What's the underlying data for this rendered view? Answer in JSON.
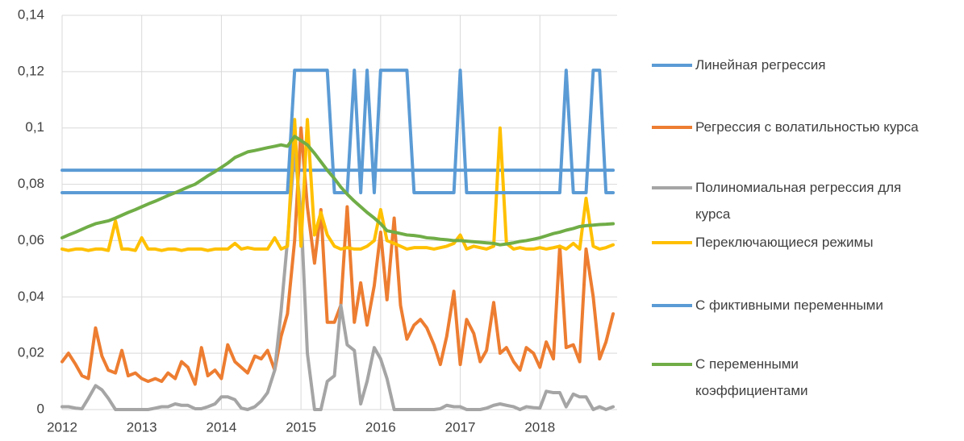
{
  "chart_data": {
    "type": "line",
    "x": [
      2012,
      2012.08,
      2012.17,
      2012.25,
      2012.33,
      2012.42,
      2012.5,
      2012.58,
      2012.67,
      2012.75,
      2012.83,
      2012.92,
      2013,
      2013.08,
      2013.17,
      2013.25,
      2013.33,
      2013.42,
      2013.5,
      2013.58,
      2013.67,
      2013.75,
      2013.83,
      2013.92,
      2014,
      2014.08,
      2014.17,
      2014.25,
      2014.33,
      2014.42,
      2014.5,
      2014.58,
      2014.67,
      2014.75,
      2014.83,
      2014.92,
      2015,
      2015.08,
      2015.17,
      2015.25,
      2015.33,
      2015.42,
      2015.5,
      2015.58,
      2015.67,
      2015.75,
      2015.83,
      2015.92,
      2016,
      2016.08,
      2016.17,
      2016.25,
      2016.33,
      2016.42,
      2016.5,
      2016.58,
      2016.67,
      2016.75,
      2016.83,
      2016.92,
      2017,
      2017.08,
      2017.17,
      2017.25,
      2017.33,
      2017.42,
      2017.5,
      2017.58,
      2017.67,
      2017.75,
      2017.83,
      2017.92,
      2018,
      2018.08,
      2018.17,
      2018.25,
      2018.33,
      2018.42,
      2018.5,
      2018.58,
      2018.67,
      2018.75,
      2018.83,
      2018.92
    ],
    "xlim": [
      2012,
      2018.97
    ],
    "xticks": [
      2012,
      2013,
      2014,
      2015,
      2016,
      2017,
      2018
    ],
    "ylim": [
      0,
      0.14
    ],
    "yticks": [
      0,
      {
        "value": 0.02,
        "label": "0,02"
      },
      {
        "value": 0.04,
        "label": "0,04"
      },
      {
        "value": 0.06,
        "label": "0,06"
      },
      {
        "value": 0.08,
        "label": "0,08"
      },
      {
        "value": 0.1,
        "label": "0,1"
      },
      {
        "value": 0.12,
        "label": "0,12"
      },
      {
        "value": 0.14,
        "label": "0,14"
      }
    ],
    "grid": true,
    "legend": "right",
    "series": [
      {
        "name": "Линейная регрессия",
        "color": "#5b9bd5",
        "values": [
          0.085,
          0.085,
          0.085,
          0.085,
          0.085,
          0.085,
          0.085,
          0.085,
          0.085,
          0.085,
          0.085,
          0.085,
          0.085,
          0.085,
          0.085,
          0.085,
          0.085,
          0.085,
          0.085,
          0.085,
          0.085,
          0.085,
          0.085,
          0.085,
          0.085,
          0.085,
          0.085,
          0.085,
          0.085,
          0.085,
          0.085,
          0.085,
          0.085,
          0.085,
          0.085,
          0.085,
          0.085,
          0.085,
          0.085,
          0.085,
          0.085,
          0.085,
          0.085,
          0.085,
          0.085,
          0.085,
          0.085,
          0.085,
          0.085,
          0.085,
          0.085,
          0.085,
          0.085,
          0.085,
          0.085,
          0.085,
          0.085,
          0.085,
          0.085,
          0.085,
          0.085,
          0.085,
          0.085,
          0.085,
          0.085,
          0.085,
          0.085,
          0.085,
          0.085,
          0.085,
          0.085,
          0.085,
          0.085,
          0.085,
          0.085,
          0.085,
          0.085,
          0.085,
          0.085,
          0.085,
          0.085,
          0.085,
          0.085,
          0.085
        ]
      },
      {
        "name": "Регрессия с волатильностью курса",
        "color": "#ed7d31",
        "values": [
          0.017,
          0.02,
          0.016,
          0.012,
          0.011,
          0.029,
          0.019,
          0.014,
          0.013,
          0.021,
          0.012,
          0.013,
          0.011,
          0.01,
          0.011,
          0.01,
          0.013,
          0.011,
          0.017,
          0.015,
          0.009,
          0.022,
          0.012,
          0.014,
          0.011,
          0.023,
          0.017,
          0.015,
          0.013,
          0.019,
          0.018,
          0.021,
          0.014,
          0.026,
          0.034,
          0.06,
          0.1,
          0.072,
          0.052,
          0.071,
          0.031,
          0.031,
          0.037,
          0.072,
          0.031,
          0.045,
          0.03,
          0.044,
          0.063,
          0.039,
          0.068,
          0.037,
          0.025,
          0.03,
          0.032,
          0.029,
          0.023,
          0.016,
          0.026,
          0.042,
          0.016,
          0.032,
          0.027,
          0.017,
          0.021,
          0.038,
          0.02,
          0.022,
          0.017,
          0.014,
          0.022,
          0.02,
          0.015,
          0.024,
          0.018,
          0.058,
          0.022,
          0.023,
          0.017,
          0.057,
          0.04,
          0.018,
          0.024,
          0.034
        ]
      },
      {
        "name": "Полиномиальная регрессия для курса",
        "color": "#a5a5a5",
        "values": [
          0.001,
          0.001,
          0.0005,
          0.0003,
          0.004,
          0.0085,
          0.007,
          0.004,
          0,
          0,
          0,
          0,
          0,
          0,
          0.0005,
          0.001,
          0.001,
          0.002,
          0.0015,
          0.0015,
          0.0003,
          0.0003,
          0.001,
          0.002,
          0.0045,
          0.0045,
          0.0035,
          0.0005,
          0,
          0.001,
          0.003,
          0.006,
          0.014,
          0.035,
          0.06,
          0.092,
          0.07,
          0.02,
          0,
          0,
          0.01,
          0.012,
          0.037,
          0.023,
          0.021,
          0.002,
          0.01,
          0.022,
          0.018,
          0.011,
          0,
          0,
          0,
          0,
          0,
          0,
          0,
          0.0003,
          0.0015,
          0.001,
          0.001,
          0,
          0,
          0,
          0.0005,
          0.0015,
          0.002,
          0.0015,
          0.001,
          0,
          0.001,
          0.0007,
          0.0005,
          0.0065,
          0.006,
          0.006,
          0.001,
          0.0055,
          0.0045,
          0.0045,
          0,
          0.001,
          0,
          0.001
        ]
      },
      {
        "name": "Переключающиеся режимы",
        "color": "#ffc000",
        "values": [
          0.057,
          0.0565,
          0.057,
          0.057,
          0.0565,
          0.057,
          0.057,
          0.0565,
          0.067,
          0.057,
          0.057,
          0.0565,
          0.061,
          0.057,
          0.057,
          0.0565,
          0.057,
          0.057,
          0.0565,
          0.057,
          0.057,
          0.057,
          0.0565,
          0.057,
          0.057,
          0.057,
          0.059,
          0.057,
          0.0575,
          0.057,
          0.057,
          0.057,
          0.061,
          0.057,
          0.058,
          0.103,
          0.058,
          0.103,
          0.062,
          0.07,
          0.062,
          0.058,
          0.057,
          0.0575,
          0.057,
          0.057,
          0.058,
          0.06,
          0.071,
          0.06,
          0.059,
          0.058,
          0.057,
          0.0575,
          0.0575,
          0.0575,
          0.057,
          0.0575,
          0.058,
          0.059,
          0.062,
          0.057,
          0.058,
          0.0575,
          0.057,
          0.058,
          0.1,
          0.059,
          0.057,
          0.0575,
          0.057,
          0.057,
          0.0575,
          0.057,
          0.0575,
          0.058,
          0.057,
          0.059,
          0.057,
          0.075,
          0.058,
          0.057,
          0.0575,
          0.0585
        ]
      },
      {
        "name": "С фиктивными переменными",
        "color": "#5b9bd5",
        "values": [
          0.077,
          0.077,
          0.077,
          0.077,
          0.077,
          0.077,
          0.077,
          0.077,
          0.077,
          0.077,
          0.077,
          0.077,
          0.077,
          0.077,
          0.077,
          0.077,
          0.077,
          0.077,
          0.077,
          0.077,
          0.077,
          0.077,
          0.077,
          0.077,
          0.077,
          0.077,
          0.077,
          0.077,
          0.077,
          0.077,
          0.077,
          0.077,
          0.077,
          0.077,
          0.077,
          0.1205,
          0.1205,
          0.1205,
          0.1205,
          0.1205,
          0.1205,
          0.077,
          0.077,
          0.077,
          0.1205,
          0.077,
          0.1205,
          0.077,
          0.1205,
          0.1205,
          0.1205,
          0.1205,
          0.1205,
          0.077,
          0.077,
          0.077,
          0.077,
          0.077,
          0.077,
          0.077,
          0.1205,
          0.077,
          0.077,
          0.077,
          0.077,
          0.077,
          0.077,
          0.077,
          0.077,
          0.077,
          0.077,
          0.077,
          0.077,
          0.077,
          0.077,
          0.077,
          0.1205,
          0.077,
          0.077,
          0.077,
          0.1205,
          0.1205,
          0.077,
          0.077
        ]
      },
      {
        "name": "С переменными коэффициентами",
        "color": "#70ad47",
        "values": [
          0.061,
          0.062,
          0.063,
          0.064,
          0.065,
          0.066,
          0.0665,
          0.067,
          0.068,
          0.069,
          0.07,
          0.071,
          0.072,
          0.073,
          0.074,
          0.075,
          0.076,
          0.077,
          0.078,
          0.079,
          0.08,
          0.0815,
          0.083,
          0.0845,
          0.086,
          0.0875,
          0.0895,
          0.0905,
          0.0915,
          0.092,
          0.0925,
          0.093,
          0.0935,
          0.094,
          0.0935,
          0.097,
          0.0955,
          0.094,
          0.091,
          0.088,
          0.085,
          0.082,
          0.079,
          0.0765,
          0.074,
          0.072,
          0.07,
          0.068,
          0.066,
          0.0635,
          0.063,
          0.0625,
          0.062,
          0.0618,
          0.0615,
          0.061,
          0.0608,
          0.0605,
          0.0603,
          0.06,
          0.06,
          0.0598,
          0.0596,
          0.0594,
          0.0592,
          0.059,
          0.0585,
          0.0588,
          0.0592,
          0.0597,
          0.06,
          0.0605,
          0.061,
          0.0617,
          0.0625,
          0.063,
          0.0637,
          0.0643,
          0.065,
          0.0653,
          0.0655,
          0.0657,
          0.0658,
          0.066
        ]
      }
    ]
  }
}
